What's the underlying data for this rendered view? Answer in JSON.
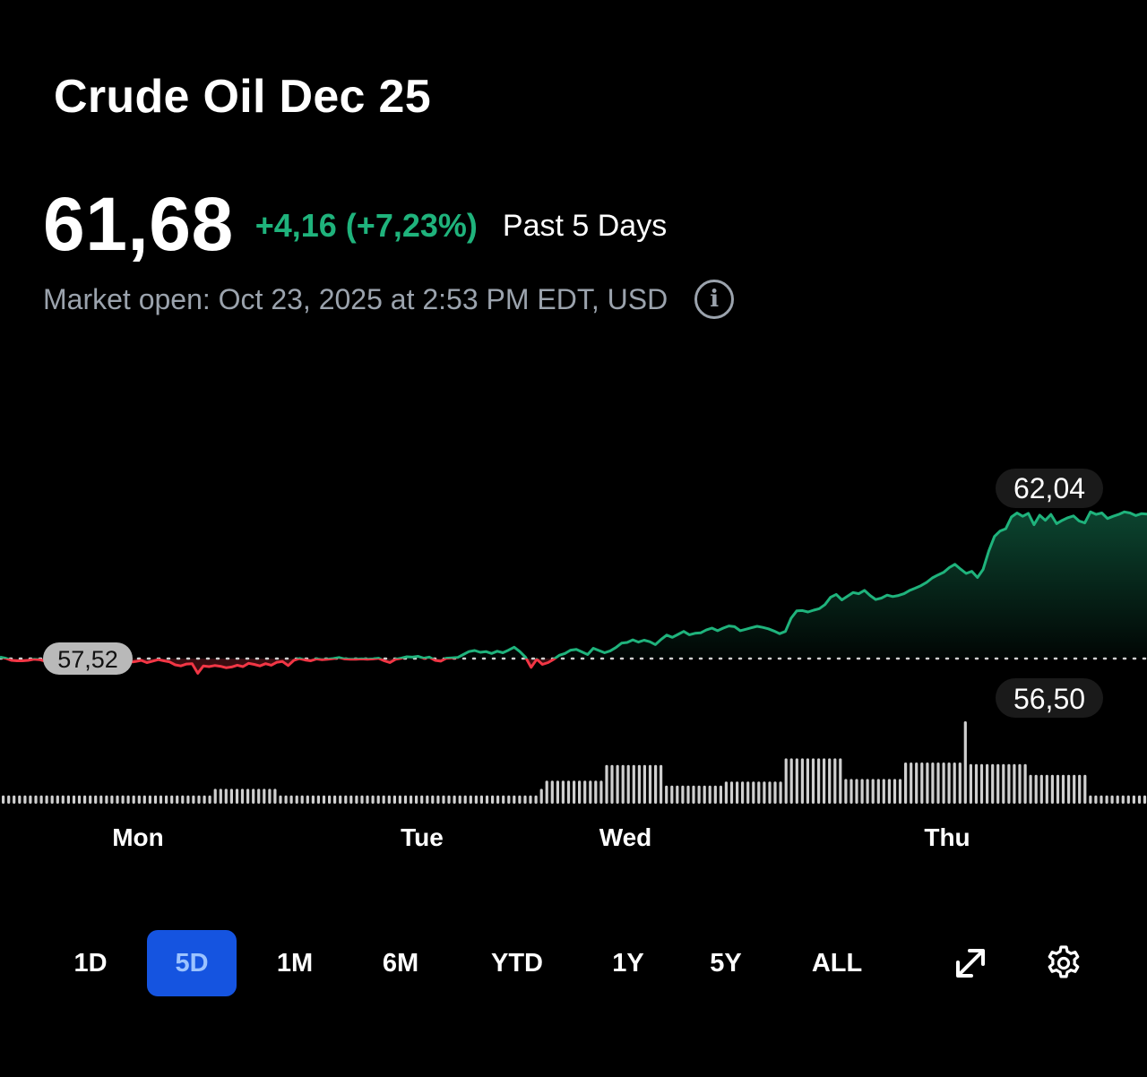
{
  "header": {
    "title": "Crude Oil Dec 25",
    "price": "61,68",
    "change": "+4,16 (+7,23%)",
    "period": "Past 5 Days",
    "status": "Market open: Oct 23, 2025 at 2:53 PM EDT, USD",
    "info_icon": "info-circle-icon",
    "info_glyph": "i"
  },
  "colors": {
    "up": "#1fb37c",
    "down": "#f23645",
    "active_range_bg": "#1554e0",
    "muted": "#9ba3ad"
  },
  "chart_data": {
    "type": "line",
    "x": [
      "Mon",
      "Tue",
      "Wed",
      "Thu"
    ],
    "previous_close": "57,52",
    "previous_close_value": 57.52,
    "high_label": "62,04",
    "high_value": 62.04,
    "volume_max_label": "56,50",
    "ylim": [
      56.9,
      62.4
    ],
    "tick_labels": [
      "Mon",
      "Tue",
      "Wed",
      "Thu"
    ],
    "price_series": [
      57.56,
      57.53,
      57.47,
      57.46,
      57.46,
      57.47,
      57.5,
      57.49,
      57.45,
      57.43,
      57.48,
      57.51,
      57.48,
      57.44,
      57.43,
      57.45,
      57.44,
      57.36,
      57.35,
      57.34,
      57.37,
      57.4,
      57.39,
      57.42,
      57.44,
      57.47,
      57.41,
      57.45,
      57.49,
      57.46,
      57.43,
      57.35,
      57.32,
      57.37,
      57.38,
      57.12,
      57.32,
      57.3,
      57.33,
      57.31,
      57.27,
      57.29,
      57.34,
      57.3,
      57.39,
      57.36,
      57.32,
      57.38,
      57.34,
      57.42,
      57.44,
      57.33,
      57.47,
      57.52,
      57.48,
      57.46,
      57.51,
      57.49,
      57.5,
      57.52,
      57.55,
      57.51,
      57.5,
      57.5,
      57.51,
      57.5,
      57.51,
      57.53,
      57.46,
      57.41,
      57.5,
      57.53,
      57.57,
      57.56,
      57.58,
      57.53,
      57.56,
      57.47,
      57.45,
      57.53,
      57.54,
      57.55,
      57.63,
      57.71,
      57.74,
      57.69,
      57.71,
      57.66,
      57.72,
      57.68,
      57.75,
      57.83,
      57.71,
      57.56,
      57.28,
      57.5,
      57.36,
      57.41,
      57.5,
      57.61,
      57.66,
      57.75,
      57.77,
      57.7,
      57.63,
      57.8,
      57.74,
      57.68,
      57.73,
      57.82,
      57.94,
      57.96,
      58.03,
      57.97,
      58.02,
      57.98,
      57.9,
      58.04,
      58.16,
      58.1,
      58.18,
      58.26,
      58.17,
      58.21,
      58.22,
      58.3,
      58.35,
      58.28,
      58.35,
      58.41,
      58.39,
      58.28,
      58.32,
      58.36,
      58.4,
      58.37,
      58.33,
      58.27,
      58.2,
      58.26,
      58.62,
      58.82,
      58.83,
      58.79,
      58.84,
      58.88,
      58.99,
      59.19,
      59.27,
      59.12,
      59.22,
      59.32,
      59.29,
      59.38,
      59.24,
      59.13,
      59.17,
      59.25,
      59.21,
      59.24,
      59.29,
      59.38,
      59.44,
      59.51,
      59.6,
      59.72,
      59.8,
      59.87,
      60.0,
      60.09,
      59.96,
      59.84,
      59.9,
      59.73,
      59.95,
      60.45,
      60.85,
      61.0,
      61.06,
      61.38,
      61.49,
      61.4,
      61.48,
      61.17,
      61.43,
      61.29,
      61.45,
      61.2,
      61.29,
      61.36,
      61.41,
      61.27,
      61.22,
      61.52,
      61.45,
      61.49,
      61.34,
      61.4,
      61.45,
      61.52,
      61.49,
      61.42,
      61.47,
      61.46
    ]
  },
  "volume_series": [
    0.1,
    0.1,
    0.1,
    0.1,
    0.1,
    0.1,
    0.1,
    0.1,
    0.1,
    0.1,
    0.1,
    0.1,
    0.1,
    0.1,
    0.1,
    0.1,
    0.1,
    0.1,
    0.1,
    0.1,
    0.1,
    0.1,
    0.1,
    0.1,
    0.1,
    0.1,
    0.1,
    0.1,
    0.1,
    0.1,
    0.1,
    0.1,
    0.1,
    0.1,
    0.1,
    0.1,
    0.1,
    0.1,
    0.1,
    0.18,
    0.18,
    0.18,
    0.18,
    0.18,
    0.18,
    0.18,
    0.18,
    0.18,
    0.18,
    0.18,
    0.18,
    0.1,
    0.1,
    0.1,
    0.1,
    0.1,
    0.1,
    0.1,
    0.1,
    0.1,
    0.1,
    0.1,
    0.1,
    0.1,
    0.1,
    0.1,
    0.1,
    0.1,
    0.1,
    0.1,
    0.1,
    0.1,
    0.1,
    0.1,
    0.1,
    0.1,
    0.1,
    0.1,
    0.1,
    0.1,
    0.1,
    0.1,
    0.1,
    0.1,
    0.1,
    0.1,
    0.1,
    0.1,
    0.1,
    0.1,
    0.1,
    0.1,
    0.1,
    0.1,
    0.1,
    0.1,
    0.1,
    0.1,
    0.1,
    0.18,
    0.28,
    0.28,
    0.28,
    0.28,
    0.28,
    0.28,
    0.28,
    0.28,
    0.28,
    0.28,
    0.28,
    0.47,
    0.47,
    0.47,
    0.47,
    0.47,
    0.47,
    0.47,
    0.47,
    0.47,
    0.47,
    0.47,
    0.22,
    0.22,
    0.22,
    0.22,
    0.22,
    0.22,
    0.22,
    0.22,
    0.22,
    0.22,
    0.22,
    0.27,
    0.27,
    0.27,
    0.27,
    0.27,
    0.27,
    0.27,
    0.27,
    0.27,
    0.27,
    0.27,
    0.55,
    0.55,
    0.55,
    0.55,
    0.55,
    0.55,
    0.55,
    0.55,
    0.55,
    0.55,
    0.55,
    0.3,
    0.3,
    0.3,
    0.3,
    0.3,
    0.3,
    0.3,
    0.3,
    0.3,
    0.3,
    0.3,
    0.5,
    0.5,
    0.5,
    0.5,
    0.5,
    0.5,
    0.5,
    0.5,
    0.5,
    0.5,
    0.5,
    1.0,
    0.48,
    0.48,
    0.48,
    0.48,
    0.48,
    0.48,
    0.48,
    0.48,
    0.48,
    0.48,
    0.48,
    0.35,
    0.35,
    0.35,
    0.35,
    0.35,
    0.35,
    0.35,
    0.35,
    0.35,
    0.35,
    0.35,
    0.1,
    0.1,
    0.1,
    0.1,
    0.1,
    0.1,
    0.1,
    0.1,
    0.1,
    0.1,
    0.1
  ],
  "ranges": [
    {
      "label": "1D",
      "active": false
    },
    {
      "label": "5D",
      "active": true
    },
    {
      "label": "1M",
      "active": false
    },
    {
      "label": "6M",
      "active": false
    },
    {
      "label": "YTD",
      "active": false
    },
    {
      "label": "1Y",
      "active": false
    },
    {
      "label": "5Y",
      "active": false
    },
    {
      "label": "ALL",
      "active": false
    }
  ],
  "tools": {
    "expand_icon": "expand-arrows-icon",
    "settings_icon": "gear-icon"
  }
}
